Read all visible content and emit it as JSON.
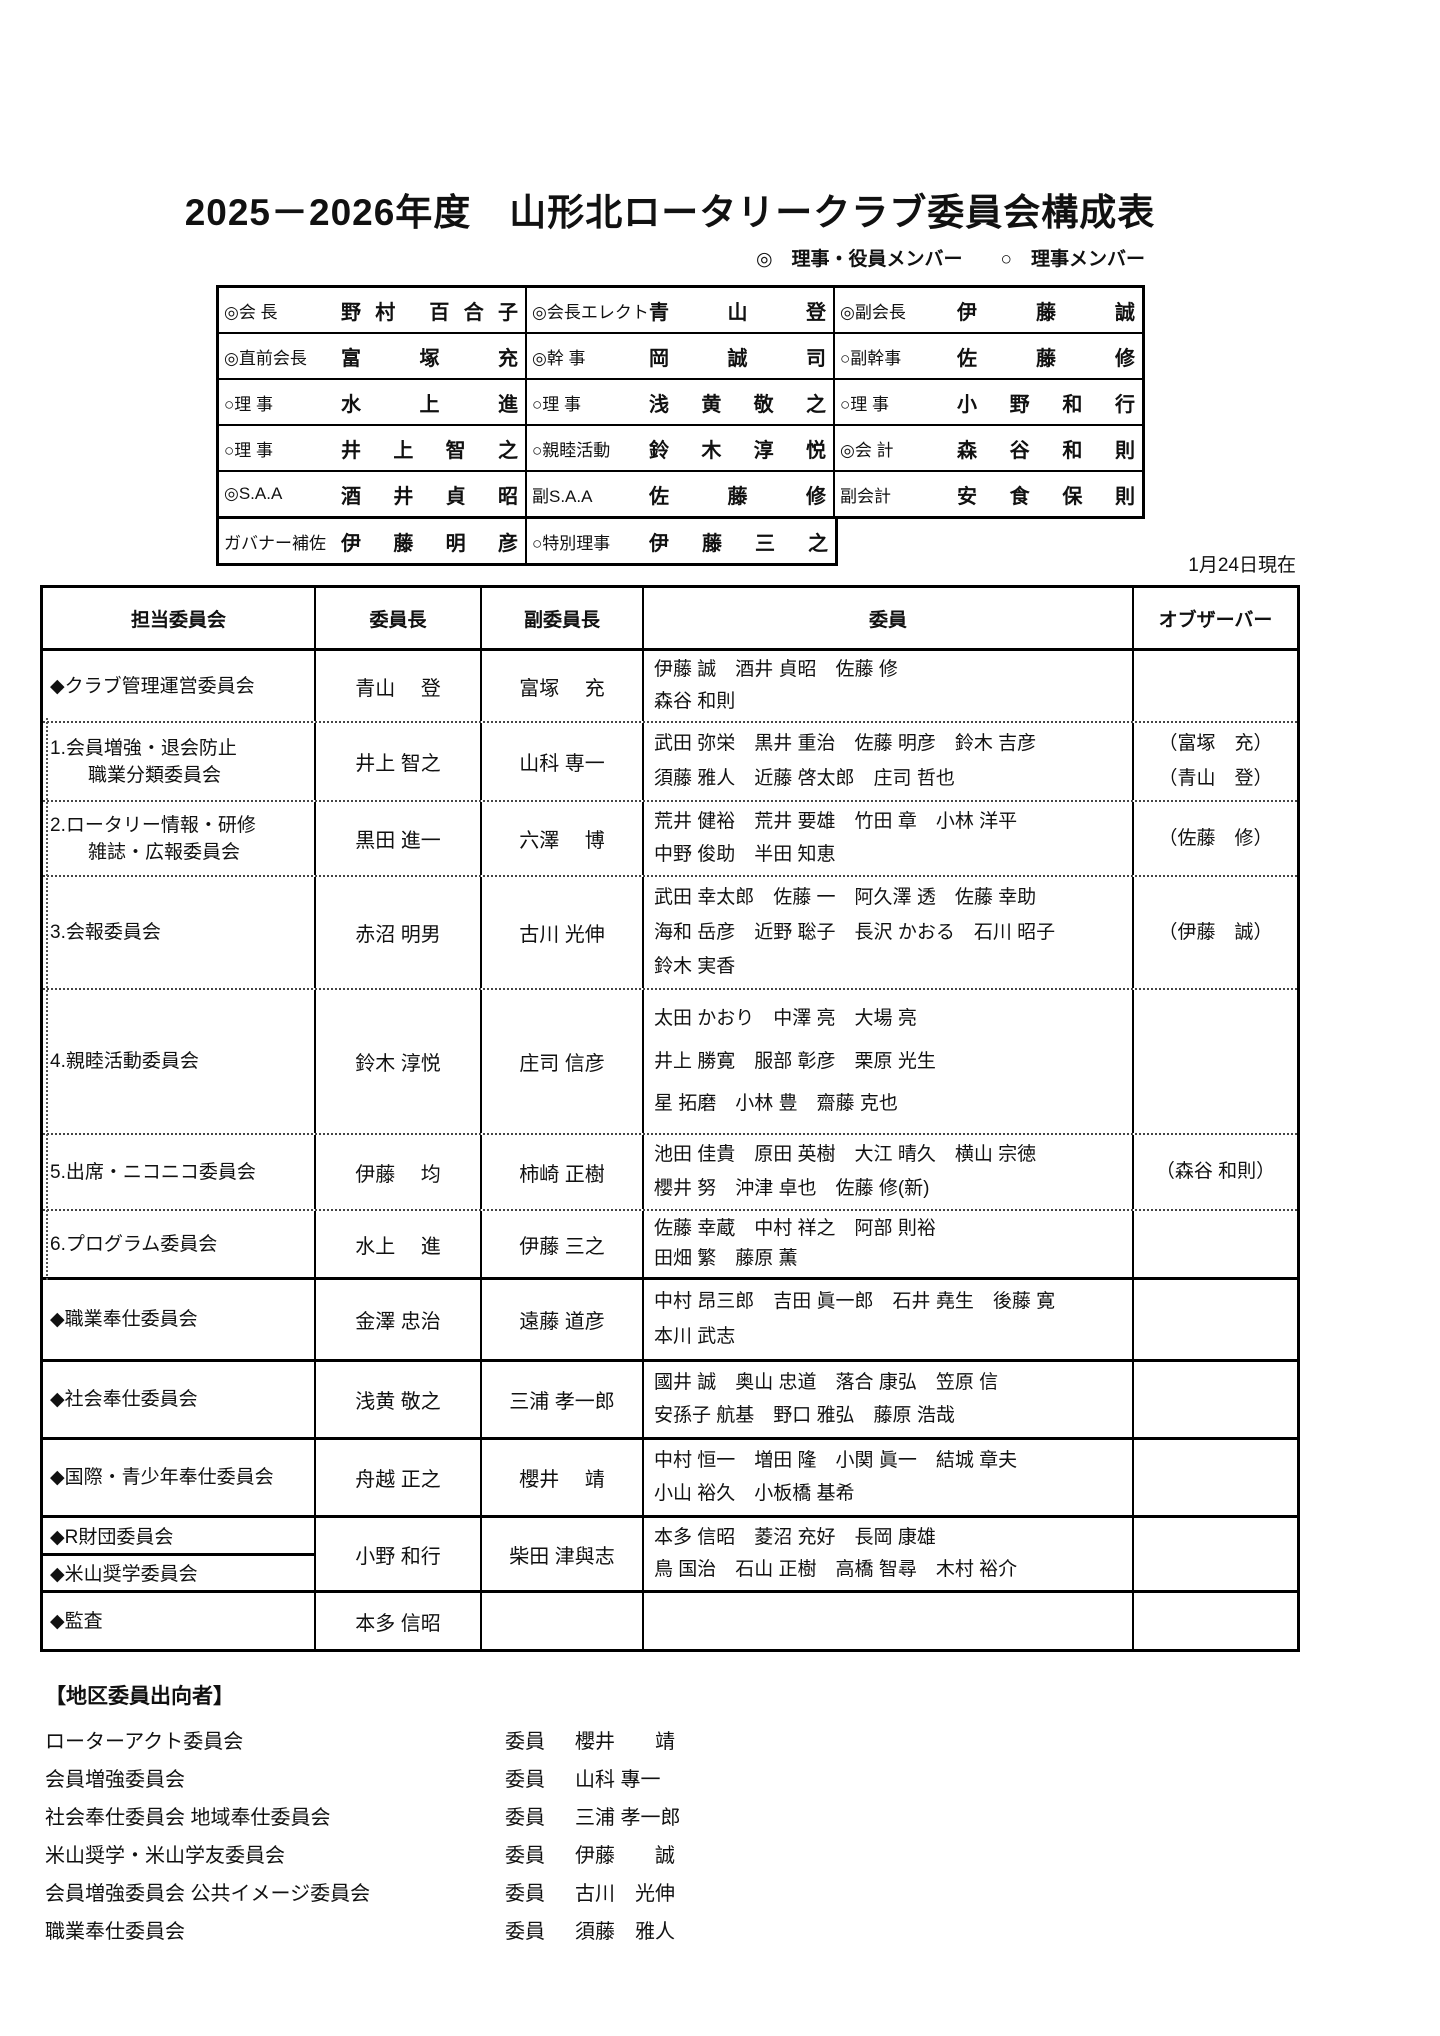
{
  "page": {
    "title": "2025－2026年度　山形北ロータリークラブ委員会構成表",
    "legend": "◎　理事・役員メンバー　　○　理事メンバー",
    "as_of_date": "1月24日現在"
  },
  "officers": {
    "rows": [
      {
        "cells": [
          {
            "label": "◎会 長",
            "name": "野村 百合子"
          },
          {
            "label": "◎会長エレクト",
            "name": "青 山 登"
          },
          {
            "label": "◎副会長",
            "name": "伊 藤 誠"
          }
        ]
      },
      {
        "cells": [
          {
            "label": "◎直前会長",
            "name": "富 塚 充"
          },
          {
            "label": "◎幹 事",
            "name": "岡 誠 司"
          },
          {
            "label": "○副幹事",
            "name": "佐 藤 修"
          }
        ]
      },
      {
        "cells": [
          {
            "label": "○理 事",
            "name": "水 上 進"
          },
          {
            "label": "○理 事",
            "name": "浅 黄 敬 之"
          },
          {
            "label": "○理 事",
            "name": "小 野 和 行"
          }
        ]
      },
      {
        "cells": [
          {
            "label": "○理 事",
            "name": "井 上 智 之"
          },
          {
            "label": "○親睦活動",
            "name": "鈴 木 淳 悦"
          },
          {
            "label": "◎会 計",
            "name": "森 谷 和 則"
          }
        ]
      },
      {
        "cells": [
          {
            "label": "◎S.A.A",
            "name": "酒 井 貞 昭"
          },
          {
            "label": "副S.A.A",
            "name": "佐 藤 修"
          },
          {
            "label": "副会計",
            "name": "安 食 保 則"
          }
        ]
      },
      {
        "cells": [
          {
            "label": "ガバナー補佐",
            "name": "伊 藤 明 彦"
          },
          {
            "label": "○特別理事",
            "name": "伊 藤 三 之"
          }
        ]
      }
    ]
  },
  "committee_table": {
    "headers": [
      "担当委員会",
      "委員長",
      "副委員長",
      "委員",
      "オブザーバー"
    ],
    "rows": [
      {
        "committee": [
          "◆クラブ管理運営委員会"
        ],
        "chair": "青山　 登",
        "vice_chair": "富塚　 充",
        "members": [
          "伊藤 誠　酒井 貞昭　佐藤 修",
          "森谷 和則"
        ],
        "observers": []
      },
      {
        "committee": [
          "1.会員増強・退会防止",
          "職業分類委員会"
        ],
        "chair": "井上 智之",
        "vice_chair": "山科 専一",
        "members": [
          "武田 弥栄　黒井 重治　佐藤 明彦　鈴木 吉彦",
          "須藤 雅人　近藤 啓太郎　庄司 哲也"
        ],
        "observers": [
          "（富塚　充）",
          "（青山　登）"
        ]
      },
      {
        "committee": [
          "2.ロータリー情報・研修",
          "雑誌・広報委員会"
        ],
        "chair": "黒田 進一",
        "vice_chair": "六澤　 博",
        "members": [
          "荒井 健裕　荒井 要雄　竹田 章　小林 洋平",
          "中野 俊助　半田 知恵"
        ],
        "observers": [
          "（佐藤　修）"
        ]
      },
      {
        "committee": [
          "3.会報委員会"
        ],
        "chair": "赤沼 明男",
        "vice_chair": "古川 光伸",
        "members": [
          "武田 幸太郎　佐藤 一　阿久澤 透　佐藤 幸助",
          "海和 岳彦　近野 聡子　長沢 かおる　石川 昭子",
          "鈴木 実香"
        ],
        "observers": [
          "（伊藤　誠）"
        ]
      },
      {
        "committee": [
          "4.親睦活動委員会"
        ],
        "chair": "鈴木 淳悦",
        "vice_chair": "庄司 信彦",
        "members": [
          "太田 かおり　中澤 亮　大場 亮",
          "井上 勝寛　服部 彰彦　栗原 光生",
          "星 拓磨　小林 豊　齋藤 克也"
        ],
        "observers": []
      },
      {
        "committee": [
          "5.出席・ニコニコ委員会"
        ],
        "chair": "伊藤　 均",
        "vice_chair": "柿崎 正樹",
        "members": [
          "池田 佳貴　原田 英樹　大江 晴久　横山 宗徳",
          "櫻井 努　沖津 卓也　佐藤 修(新)"
        ],
        "observers": [
          "（森谷 和則）"
        ]
      },
      {
        "committee": [
          "6.プログラム委員会"
        ],
        "chair": "水上　 進",
        "vice_chair": "伊藤 三之",
        "members": [
          "佐藤 幸蔵　中村 祥之　阿部 則裕",
          "田畑 繁　藤原 薫"
        ],
        "observers": []
      },
      {
        "committee": [
          "◆職業奉仕委員会"
        ],
        "chair": "金澤 忠治",
        "vice_chair": "遠藤 道彦",
        "members": [
          "中村 昂三郎　吉田 眞一郎　石井 堯生　後藤 寛",
          "本川 武志"
        ],
        "observers": []
      },
      {
        "committee": [
          "◆社会奉仕委員会"
        ],
        "chair": "浅黄 敬之",
        "vice_chair": "三浦 孝一郎",
        "members": [
          "國井 誠　奥山 忠道　落合 康弘　笠原 信",
          "安孫子 航基　野口 雅弘　藤原 浩哉"
        ],
        "observers": []
      },
      {
        "committee": [
          "◆国際・青少年奉仕委員会"
        ],
        "chair": "舟越 正之",
        "vice_chair": "櫻井　 靖",
        "members": [
          "中村 恒一　増田 隆　小関 眞一　結城 章夫",
          "小山 裕久　小板橋 基希"
        ],
        "observers": []
      },
      {
        "committee": [
          "◆R財団委員会",
          "◆米山奨学委員会"
        ],
        "split": true,
        "chair": "小野 和行",
        "vice_chair": "柴田 津與志",
        "members": [
          "本多 信昭　菱沼 充好　長岡 康雄",
          "鳥 国治　石山 正樹　高橋 智尋　木村 裕介"
        ],
        "observers": []
      },
      {
        "committee": [
          "◆監査"
        ],
        "chair": "本多 信昭",
        "vice_chair": "",
        "members": [],
        "observers": []
      }
    ]
  },
  "dispatch": {
    "heading": "【地区委員出向者】",
    "role_label": "委員",
    "rows": [
      {
        "committee": "ローターアクト委員会",
        "name": "櫻井　　靖"
      },
      {
        "committee": "会員増強委員会",
        "name": "山科 專一"
      },
      {
        "committee": "社会奉仕委員会 地域奉仕委員会",
        "name": "三浦 孝一郎"
      },
      {
        "committee": "米山奨学・米山学友委員会",
        "name": "伊藤　　誠"
      },
      {
        "committee": "会員増強委員会 公共イメージ委員会",
        "name": "古川　光伸"
      },
      {
        "committee": "職業奉仕委員会",
        "name": "須藤　雅人"
      }
    ]
  }
}
